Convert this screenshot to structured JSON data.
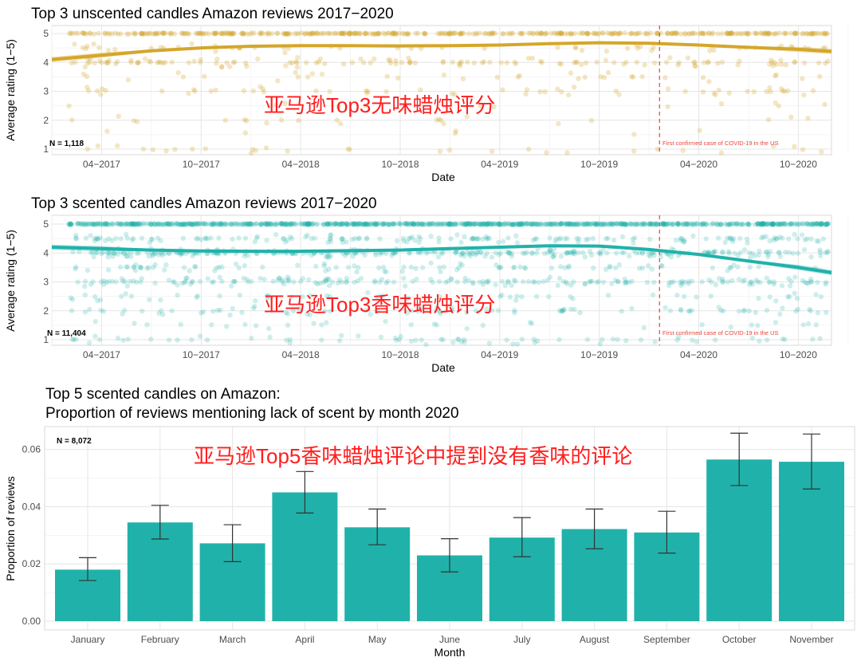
{
  "chart_data": [
    {
      "type": "scatter",
      "title": "Top 3 unscented candles Amazon reviews 2017−2020",
      "xlabel": "Date",
      "ylabel": "Average rating (1−5)",
      "x_ticks": [
        "04−2017",
        "10−2017",
        "04−2018",
        "10−2018",
        "04−2019",
        "10−2019",
        "04−2020",
        "10−2020"
      ],
      "y_ticks": [
        "1",
        "2",
        "3",
        "4",
        "5"
      ],
      "ylim": [
        1,
        5
      ],
      "xlim": [
        "2017-01",
        "2020-12"
      ],
      "n_label": "N = 1,118",
      "overlay_text": "亚马逊Top3无味蜡烛评分",
      "annotation": "First confirmed case of COVID-19 in the US",
      "vline_date": "2020-01-20",
      "color": "#d4a62a",
      "trend": {
        "x": [
          "2017-01",
          "2017-04",
          "2017-07",
          "2017-10",
          "2018-01",
          "2018-04",
          "2018-07",
          "2018-10",
          "2019-01",
          "2019-04",
          "2019-07",
          "2019-10",
          "2020-01",
          "2020-04",
          "2020-07",
          "2020-10",
          "2020-12"
        ],
        "y": [
          4.1,
          4.25,
          4.4,
          4.5,
          4.56,
          4.58,
          4.58,
          4.57,
          4.58,
          4.6,
          4.65,
          4.68,
          4.66,
          4.6,
          4.52,
          4.45,
          4.38
        ]
      }
    },
    {
      "type": "scatter",
      "title": "Top 3 scented candles Amazon reviews 2017−2020",
      "xlabel": "Date",
      "ylabel": "Average rating (1−5)",
      "x_ticks": [
        "04−2017",
        "10−2017",
        "04−2018",
        "10−2018",
        "04−2019",
        "10−2019",
        "04−2020",
        "10−2020"
      ],
      "y_ticks": [
        "1",
        "2",
        "3",
        "4",
        "5"
      ],
      "ylim": [
        1,
        5
      ],
      "xlim": [
        "2017-01",
        "2020-12"
      ],
      "n_label": "N = 11,404",
      "overlay_text": "亚马逊Top3香味蜡烛评分",
      "annotation": "First confirmed case of COVID-19 in the US",
      "vline_date": "2020-01-20",
      "color": "#20b2aa",
      "trend": {
        "x": [
          "2017-01",
          "2017-04",
          "2017-07",
          "2017-10",
          "2018-01",
          "2018-04",
          "2018-07",
          "2018-10",
          "2019-01",
          "2019-04",
          "2019-07",
          "2019-10",
          "2020-01",
          "2020-04",
          "2020-07",
          "2020-10",
          "2020-12"
        ],
        "y": [
          4.2,
          4.15,
          4.1,
          4.07,
          4.06,
          4.06,
          4.08,
          4.1,
          4.15,
          4.2,
          4.25,
          4.24,
          4.12,
          3.95,
          3.72,
          3.5,
          3.32
        ]
      }
    },
    {
      "type": "bar",
      "title_lines": [
        "Top 5 scented candles on Amazon:",
        "Proportion of reviews mentioning lack of scent by month 2020"
      ],
      "xlabel": "Month",
      "ylabel": "Proportion of reviews",
      "ylim": [
        0,
        0.068
      ],
      "y_ticks": [
        "0.00",
        "0.02",
        "0.04",
        "0.06"
      ],
      "n_label": "N = 8,072",
      "overlay_text": "亚马逊Top5香味蜡烛评论中提到没有香味的评论",
      "color": "#20b2aa",
      "categories": [
        "January",
        "February",
        "March",
        "April",
        "May",
        "June",
        "July",
        "August",
        "September",
        "October",
        "November"
      ],
      "values": [
        0.018,
        0.0345,
        0.0272,
        0.045,
        0.0328,
        0.023,
        0.0292,
        0.0322,
        0.031,
        0.0565,
        0.0557
      ],
      "error_low": [
        0.0142,
        0.0287,
        0.0208,
        0.0378,
        0.0267,
        0.0172,
        0.0225,
        0.0253,
        0.0238,
        0.0474,
        0.0462
      ],
      "error_high": [
        0.0222,
        0.0405,
        0.0337,
        0.0523,
        0.0392,
        0.0288,
        0.0362,
        0.0392,
        0.0384,
        0.0657,
        0.0654
      ]
    }
  ]
}
